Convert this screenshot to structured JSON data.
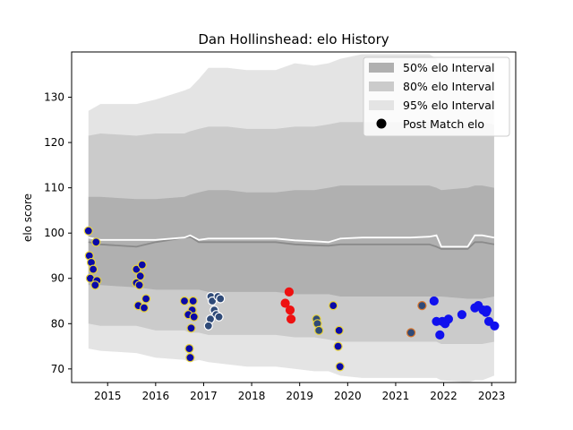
{
  "chart_data": {
    "type": "scatter",
    "title": "Dan Hollinshead: elo History",
    "xlabel": "",
    "ylabel": "elo score",
    "xlim": [
      2014.25,
      2023.5
    ],
    "ylim": [
      67,
      140
    ],
    "xticks": [
      2015,
      2016,
      2017,
      2018,
      2019,
      2020,
      2021,
      2022,
      2023
    ],
    "yticks": [
      70,
      80,
      90,
      100,
      110,
      120,
      130
    ],
    "grid": false,
    "legend": {
      "placement": "top-right",
      "entries": [
        "50% elo Interval",
        "80% elo Interval",
        "95% elo Interval",
        "Post Match elo"
      ]
    },
    "colors": {
      "band95": "#e4e4e4",
      "band80": "#cbcbcb",
      "band50": "#b0b0b0",
      "median_line": "#8a8a8a",
      "mean_line": "#ffffff",
      "point_blue": "#0a0aa8",
      "point_steel": "#2f4a78",
      "point_red": "#ee1111",
      "point_bright_blue": "#1111ee",
      "edge_yellow": "#e6d23a",
      "edge_white": "#ffffff",
      "edge_orange": "#d9742a",
      "edge_red": "#ee1111",
      "edge_blue": "#1111ee"
    },
    "bands": {
      "x": [
        2014.6,
        2014.85,
        2015.6,
        2016.0,
        2016.6,
        2016.72,
        2016.9,
        2017.1,
        2017.5,
        2017.9,
        2018.5,
        2018.9,
        2019.3,
        2019.6,
        2019.85,
        2020.3,
        2020.8,
        2021.3,
        2021.7,
        2021.85,
        2021.95,
        2022.5,
        2022.65,
        2022.8,
        2023.05
      ],
      "p95_upper": [
        127,
        128.5,
        128.5,
        129.5,
        131.5,
        132,
        134,
        136.5,
        136.5,
        136,
        136,
        137.5,
        137,
        137.5,
        138.5,
        139.5,
        139.5,
        139.5,
        139.5,
        138.5,
        136,
        137,
        138,
        138,
        137.5
      ],
      "p95_lower": [
        74.5,
        74,
        73.5,
        72.5,
        72,
        71.5,
        72,
        71.5,
        71,
        70.5,
        70.5,
        70,
        69.5,
        69.5,
        68.5,
        68,
        68,
        68,
        68,
        68,
        67.5,
        67,
        67.5,
        67.5,
        68.5
      ],
      "p80_upper": [
        121.5,
        122,
        121.5,
        122,
        122,
        122.5,
        123,
        123.5,
        123.5,
        123,
        123,
        123.5,
        123.5,
        124,
        124.5,
        124.5,
        124.5,
        124.5,
        124.5,
        124,
        123.5,
        124,
        124.5,
        124.5,
        124
      ],
      "p80_lower": [
        80,
        79.5,
        79.5,
        78.5,
        78.5,
        78,
        78,
        77.5,
        77.5,
        77.5,
        77.5,
        77,
        77,
        76.5,
        76,
        76,
        76,
        76,
        76,
        76,
        75.5,
        75.5,
        75.5,
        75.5,
        76
      ],
      "p50_upper": [
        108,
        108,
        107.5,
        107.5,
        108,
        108.5,
        109,
        109.5,
        109.5,
        109,
        109,
        109.5,
        109.5,
        110,
        110.5,
        110.5,
        110.5,
        110.5,
        110.5,
        110,
        109.5,
        110,
        110.5,
        110.5,
        110
      ],
      "p50_lower": [
        88.5,
        88.5,
        88,
        87.5,
        87.5,
        87.5,
        87.5,
        87,
        87,
        87,
        87,
        86.5,
        86.5,
        86.5,
        86,
        86,
        86,
        86,
        86,
        86,
        86,
        85.5,
        85.5,
        85.5,
        86
      ],
      "median": [
        98,
        97.5,
        97,
        98,
        99,
        99.2,
        98,
        98,
        98,
        98,
        98,
        97.5,
        97.3,
        97.2,
        97.5,
        97.5,
        97.5,
        97.5,
        97.5,
        97,
        96.5,
        96.5,
        98,
        98,
        97.5
      ]
    },
    "mean_line": {
      "x": [
        2014.6,
        2014.85,
        2015.6,
        2016.0,
        2016.6,
        2016.72,
        2016.9,
        2017.1,
        2017.5,
        2017.9,
        2018.5,
        2018.9,
        2019.3,
        2019.6,
        2019.85,
        2020.3,
        2020.8,
        2021.3,
        2021.7,
        2021.85,
        2021.95,
        2022.5,
        2022.65,
        2022.8,
        2023.05
      ],
      "y": [
        99,
        98.5,
        98.5,
        98.5,
        99,
        99.5,
        98.5,
        98.8,
        98.8,
        98.8,
        98.8,
        98.4,
        98.2,
        98,
        98.8,
        99,
        99,
        99,
        99.2,
        99.5,
        97,
        97,
        99.5,
        99.5,
        99
      ]
    },
    "series": [
      {
        "name": "Post Match elo",
        "points": [
          {
            "x": 2014.6,
            "y": 100.5,
            "fill": "point_blue",
            "edge": "edge_yellow"
          },
          {
            "x": 2014.62,
            "y": 95,
            "fill": "point_blue",
            "edge": "edge_yellow"
          },
          {
            "x": 2014.66,
            "y": 93.5,
            "fill": "point_blue",
            "edge": "edge_yellow"
          },
          {
            "x": 2014.7,
            "y": 92,
            "fill": "point_blue",
            "edge": "edge_yellow"
          },
          {
            "x": 2014.64,
            "y": 90,
            "fill": "point_blue",
            "edge": "edge_yellow"
          },
          {
            "x": 2014.78,
            "y": 89.5,
            "fill": "point_blue",
            "edge": "edge_yellow"
          },
          {
            "x": 2014.74,
            "y": 88.5,
            "fill": "point_blue",
            "edge": "edge_yellow"
          },
          {
            "x": 2014.76,
            "y": 98,
            "fill": "point_blue",
            "edge": "edge_yellow"
          },
          {
            "x": 2015.6,
            "y": 92,
            "fill": "point_blue",
            "edge": "edge_yellow"
          },
          {
            "x": 2015.72,
            "y": 93,
            "fill": "point_blue",
            "edge": "edge_yellow"
          },
          {
            "x": 2015.68,
            "y": 90.5,
            "fill": "point_blue",
            "edge": "edge_yellow"
          },
          {
            "x": 2015.6,
            "y": 89,
            "fill": "point_blue",
            "edge": "edge_yellow"
          },
          {
            "x": 2015.66,
            "y": 88.5,
            "fill": "point_blue",
            "edge": "edge_yellow"
          },
          {
            "x": 2015.8,
            "y": 85.5,
            "fill": "point_blue",
            "edge": "edge_yellow"
          },
          {
            "x": 2015.64,
            "y": 84,
            "fill": "point_blue",
            "edge": "edge_yellow"
          },
          {
            "x": 2015.76,
            "y": 83.5,
            "fill": "point_blue",
            "edge": "edge_yellow"
          },
          {
            "x": 2016.6,
            "y": 85,
            "fill": "point_blue",
            "edge": "edge_yellow"
          },
          {
            "x": 2016.78,
            "y": 85,
            "fill": "point_blue",
            "edge": "edge_yellow"
          },
          {
            "x": 2016.76,
            "y": 83,
            "fill": "point_blue",
            "edge": "edge_yellow"
          },
          {
            "x": 2016.68,
            "y": 82,
            "fill": "point_blue",
            "edge": "edge_yellow"
          },
          {
            "x": 2016.8,
            "y": 81.5,
            "fill": "point_blue",
            "edge": "edge_yellow"
          },
          {
            "x": 2016.74,
            "y": 79,
            "fill": "point_blue",
            "edge": "edge_yellow"
          },
          {
            "x": 2016.7,
            "y": 74.5,
            "fill": "point_blue",
            "edge": "edge_yellow"
          },
          {
            "x": 2016.72,
            "y": 72.5,
            "fill": "point_blue",
            "edge": "edge_yellow"
          },
          {
            "x": 2017.15,
            "y": 86,
            "fill": "point_steel",
            "edge": "edge_white"
          },
          {
            "x": 2017.18,
            "y": 85,
            "fill": "point_steel",
            "edge": "edge_white"
          },
          {
            "x": 2017.3,
            "y": 86,
            "fill": "point_steel",
            "edge": "edge_white"
          },
          {
            "x": 2017.35,
            "y": 85.5,
            "fill": "point_steel",
            "edge": "edge_white"
          },
          {
            "x": 2017.22,
            "y": 83,
            "fill": "point_steel",
            "edge": "edge_white"
          },
          {
            "x": 2017.26,
            "y": 82,
            "fill": "point_steel",
            "edge": "edge_white"
          },
          {
            "x": 2017.32,
            "y": 81.5,
            "fill": "point_steel",
            "edge": "edge_white"
          },
          {
            "x": 2017.14,
            "y": 81,
            "fill": "point_steel",
            "edge": "edge_white"
          },
          {
            "x": 2017.1,
            "y": 79.5,
            "fill": "point_steel",
            "edge": "edge_white"
          },
          {
            "x": 2018.7,
            "y": 84.5,
            "fill": "point_red",
            "edge": "edge_red"
          },
          {
            "x": 2018.78,
            "y": 87,
            "fill": "point_red",
            "edge": "edge_red"
          },
          {
            "x": 2018.8,
            "y": 83,
            "fill": "point_red",
            "edge": "edge_red"
          },
          {
            "x": 2018.82,
            "y": 81,
            "fill": "point_red",
            "edge": "edge_red"
          },
          {
            "x": 2019.35,
            "y": 81,
            "fill": "point_steel",
            "edge": "edge_yellow"
          },
          {
            "x": 2019.37,
            "y": 80,
            "fill": "point_steel",
            "edge": "edge_yellow"
          },
          {
            "x": 2019.4,
            "y": 78.5,
            "fill": "point_steel",
            "edge": "edge_yellow"
          },
          {
            "x": 2019.7,
            "y": 84,
            "fill": "point_blue",
            "edge": "edge_yellow"
          },
          {
            "x": 2019.82,
            "y": 78.5,
            "fill": "point_blue",
            "edge": "edge_yellow"
          },
          {
            "x": 2019.8,
            "y": 75,
            "fill": "point_blue",
            "edge": "edge_yellow"
          },
          {
            "x": 2019.84,
            "y": 70.5,
            "fill": "point_blue",
            "edge": "edge_yellow"
          },
          {
            "x": 2021.32,
            "y": 78,
            "fill": "point_steel",
            "edge": "edge_orange"
          },
          {
            "x": 2021.55,
            "y": 84,
            "fill": "point_steel",
            "edge": "edge_orange"
          },
          {
            "x": 2021.8,
            "y": 85,
            "fill": "point_bright_blue",
            "edge": "edge_blue"
          },
          {
            "x": 2021.85,
            "y": 80.5,
            "fill": "point_bright_blue",
            "edge": "edge_blue"
          },
          {
            "x": 2021.92,
            "y": 77.5,
            "fill": "point_bright_blue",
            "edge": "edge_blue"
          },
          {
            "x": 2021.97,
            "y": 80.5,
            "fill": "point_bright_blue",
            "edge": "edge_blue"
          },
          {
            "x": 2022.03,
            "y": 80,
            "fill": "point_bright_blue",
            "edge": "edge_blue"
          },
          {
            "x": 2022.1,
            "y": 81,
            "fill": "point_bright_blue",
            "edge": "edge_blue"
          },
          {
            "x": 2022.38,
            "y": 82,
            "fill": "point_bright_blue",
            "edge": "edge_blue"
          },
          {
            "x": 2022.65,
            "y": 83.5,
            "fill": "point_bright_blue",
            "edge": "edge_blue"
          },
          {
            "x": 2022.72,
            "y": 84,
            "fill": "point_bright_blue",
            "edge": "edge_blue"
          },
          {
            "x": 2022.82,
            "y": 83,
            "fill": "point_bright_blue",
            "edge": "edge_blue"
          },
          {
            "x": 2022.88,
            "y": 82.5,
            "fill": "point_bright_blue",
            "edge": "edge_blue"
          },
          {
            "x": 2022.9,
            "y": 83,
            "fill": "point_bright_blue",
            "edge": "edge_blue"
          },
          {
            "x": 2022.94,
            "y": 80.5,
            "fill": "point_bright_blue",
            "edge": "edge_blue"
          },
          {
            "x": 2023.06,
            "y": 79.5,
            "fill": "point_bright_blue",
            "edge": "edge_blue"
          }
        ]
      }
    ]
  }
}
